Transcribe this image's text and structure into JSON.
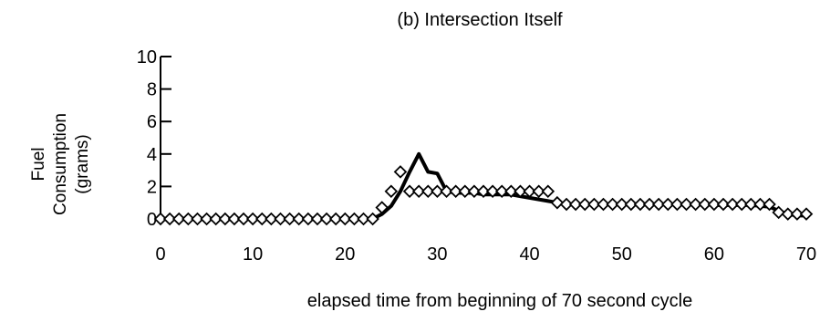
{
  "chart_data": {
    "type": "line",
    "title": "(b) Intersection Itself",
    "ylabel_lines": [
      "Fuel",
      "Consumption",
      "(grams)"
    ],
    "xlabel": "elapsed time from beginning of 70 second cycle",
    "xlim": [
      0,
      70
    ],
    "ylim": [
      0,
      10
    ],
    "x_ticks": [
      0,
      10,
      20,
      30,
      40,
      50,
      60,
      70
    ],
    "y_ticks": [
      0,
      2,
      4,
      6,
      8,
      10
    ],
    "grid": false,
    "legend": "none",
    "series": [
      {
        "style": "solid-line",
        "color": "#000000",
        "x": [
          0,
          1,
          2,
          3,
          4,
          5,
          6,
          7,
          8,
          9,
          10,
          11,
          12,
          13,
          14,
          15,
          16,
          17,
          18,
          19,
          20,
          21,
          22,
          23,
          24,
          25,
          26,
          27,
          28,
          29,
          30,
          31,
          32,
          33,
          34,
          35,
          36,
          37,
          38,
          39,
          40,
          41,
          42,
          43,
          44,
          45,
          46,
          47,
          48,
          49,
          50,
          51,
          52,
          53,
          54,
          55,
          56,
          57,
          58,
          59,
          60,
          61,
          62,
          63,
          64,
          65,
          66,
          67,
          68,
          69,
          70
        ],
        "y": [
          0,
          0,
          0,
          0,
          0,
          0,
          0,
          0,
          0,
          0,
          0,
          0,
          0,
          0,
          0,
          0,
          0,
          0,
          0,
          0,
          0,
          0,
          0,
          0,
          0.3,
          0.8,
          1.7,
          2.9,
          4.0,
          2.9,
          2.8,
          1.7,
          1.6,
          1.6,
          1.6,
          1.5,
          1.5,
          1.5,
          1.5,
          1.4,
          1.3,
          1.2,
          1.1,
          1.0,
          0.9,
          0.9,
          0.9,
          0.9,
          0.9,
          0.9,
          0.9,
          0.9,
          0.9,
          0.9,
          0.9,
          0.9,
          0.9,
          0.9,
          0.9,
          0.9,
          0.85,
          0.85,
          0.85,
          0.85,
          0.85,
          0.8,
          0.75,
          0.5,
          0.3,
          0.2,
          0.2
        ]
      },
      {
        "style": "diamond-markers",
        "color": "#000000",
        "x": [
          0,
          1,
          2,
          3,
          4,
          5,
          6,
          7,
          8,
          9,
          10,
          11,
          12,
          13,
          14,
          15,
          16,
          17,
          18,
          19,
          20,
          21,
          22,
          23,
          24,
          25,
          26,
          27,
          28,
          29,
          30,
          31,
          32,
          33,
          34,
          35,
          36,
          37,
          38,
          39,
          40,
          41,
          42,
          43,
          44,
          45,
          46,
          47,
          48,
          49,
          50,
          51,
          52,
          53,
          54,
          55,
          56,
          57,
          58,
          59,
          60,
          61,
          62,
          63,
          64,
          65,
          66,
          67,
          68,
          69,
          70
        ],
        "y": [
          0,
          0,
          0,
          0,
          0,
          0,
          0,
          0,
          0,
          0,
          0,
          0,
          0,
          0,
          0,
          0,
          0,
          0,
          0,
          0,
          0,
          0,
          0,
          0,
          0.7,
          1.7,
          2.9,
          1.7,
          1.7,
          1.7,
          1.7,
          1.7,
          1.7,
          1.7,
          1.7,
          1.7,
          1.7,
          1.7,
          1.7,
          1.7,
          1.7,
          1.7,
          1.7,
          1.0,
          0.9,
          0.9,
          0.9,
          0.9,
          0.9,
          0.9,
          0.9,
          0.9,
          0.9,
          0.9,
          0.9,
          0.9,
          0.9,
          0.9,
          0.9,
          0.9,
          0.9,
          0.9,
          0.9,
          0.9,
          0.9,
          0.9,
          0.9,
          0.4,
          0.3,
          0.3,
          0.3
        ]
      }
    ]
  }
}
